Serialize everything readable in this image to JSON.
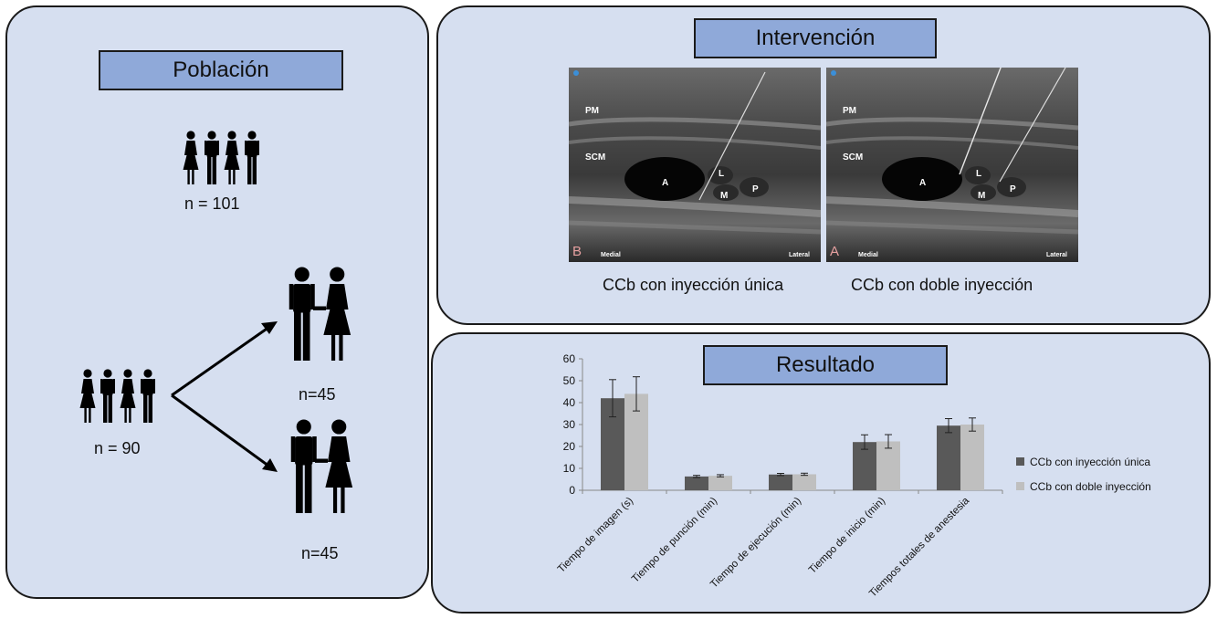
{
  "poblacion": {
    "title": "Población",
    "total_label": "n = 101",
    "randomized_label": "n = 90",
    "group1_label": "n=45",
    "group2_label": "n=45"
  },
  "intervencion": {
    "title": "Intervención",
    "image_left": {
      "panel_letter": "B",
      "caption": "CCb con inyección única"
    },
    "image_right": {
      "panel_letter": "A",
      "caption": "CCb con doble inyección"
    },
    "ultrasound_labels": {
      "pm": "PM",
      "scm": "SCM",
      "a": "A",
      "l": "L",
      "m": "M",
      "p": "P",
      "medial": "Medial",
      "lateral": "Lateral"
    }
  },
  "resultado": {
    "title": "Resultado"
  },
  "chart_data": {
    "type": "bar",
    "categories": [
      "Tiempo de imagen (s)",
      "Tiempo de punción (min)",
      "Tiempo de ejecución (min)",
      "Tiempo de inicio (min)",
      "Tiempos totales de anestesia"
    ],
    "series": [
      {
        "name": "CCb con inyección única",
        "values": [
          42,
          6.3,
          7.2,
          22,
          29.5
        ],
        "errors": [
          8.5,
          0.5,
          0.5,
          3.3,
          3.2
        ],
        "color": "#595959"
      },
      {
        "name": "CCb con doble inyección",
        "values": [
          44,
          6.6,
          7.3,
          22.3,
          30
        ],
        "errors": [
          7.8,
          0.5,
          0.5,
          3.1,
          3.0
        ],
        "color": "#bfbfbf"
      }
    ],
    "ylim": [
      0,
      60
    ],
    "yticks": [
      0,
      10,
      20,
      30,
      40,
      50,
      60
    ],
    "legend_position": "right",
    "grid": false
  }
}
